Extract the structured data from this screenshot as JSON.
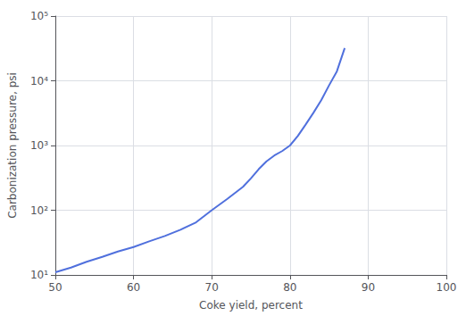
{
  "chart_data": {
    "type": "line",
    "xlabel": "Coke yield, percent",
    "ylabel": "Carbonization pressure, psi",
    "x": [
      50,
      52,
      54,
      56,
      58,
      60,
      62,
      64,
      66,
      68,
      70,
      72,
      74,
      75,
      76,
      77,
      78,
      79,
      80,
      81,
      82,
      83,
      84,
      85,
      86,
      87
    ],
    "values": [
      11,
      13,
      16,
      19,
      23,
      27,
      33,
      40,
      50,
      65,
      100,
      150,
      230,
      310,
      430,
      570,
      700,
      820,
      1000,
      1400,
      2100,
      3200,
      5000,
      8500,
      14000,
      32000
    ],
    "xlim": [
      50,
      100
    ],
    "ylim": [
      10,
      100000
    ],
    "xticks": [
      50,
      60,
      70,
      80,
      90,
      100
    ],
    "yticks": [
      {
        "value": 10,
        "label": "10¹"
      },
      {
        "value": 100,
        "label": "10²"
      },
      {
        "value": 1000,
        "label": "10³"
      },
      {
        "value": 10000,
        "label": "10⁴"
      },
      {
        "value": 100000,
        "label": "10⁵"
      }
    ],
    "log": "y",
    "grid": true
  }
}
